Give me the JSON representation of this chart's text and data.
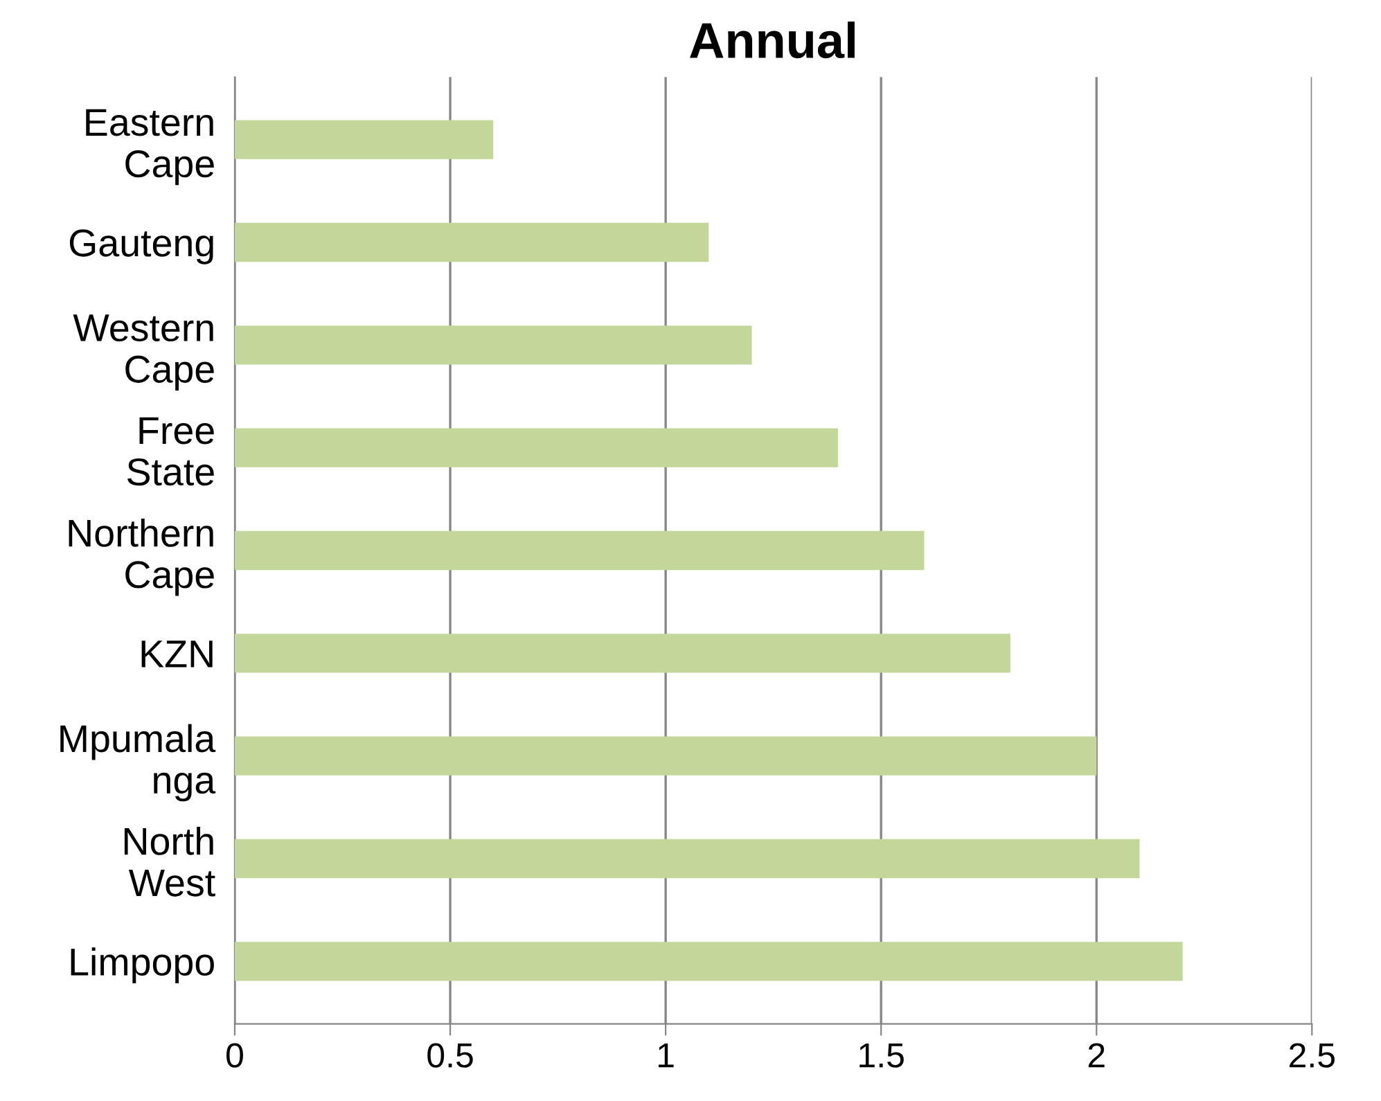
{
  "chart_data": {
    "type": "bar",
    "orientation": "horizontal",
    "title": "Annual",
    "categories": [
      "Eastern\nCape",
      "Gauteng",
      "Western\nCape",
      "Free\nState",
      "Northern\nCape",
      "KZN",
      "Mpumala\nnga",
      "North\nWest",
      "Limpopo"
    ],
    "values": [
      0.6,
      1.1,
      1.2,
      1.4,
      1.6,
      1.8,
      2.0,
      2.1,
      2.2
    ],
    "color": "#c4d79b",
    "xlim": [
      0,
      2.5
    ],
    "xticks": [
      0,
      0.5,
      1,
      1.5,
      2,
      2.5
    ],
    "grid": "x"
  }
}
